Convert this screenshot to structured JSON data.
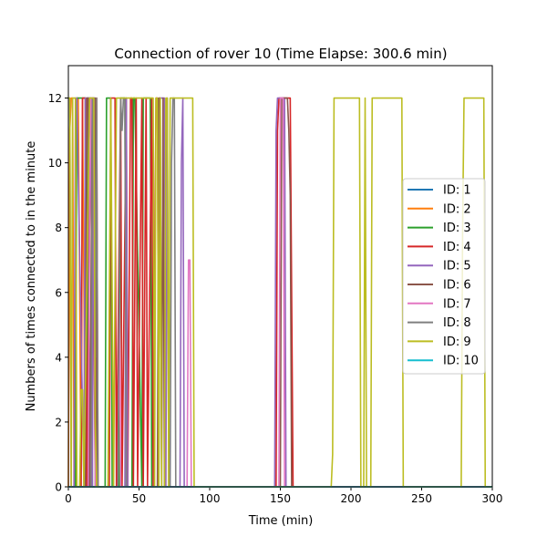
{
  "chart_data": {
    "type": "line",
    "title": "Connection of rover 10 (Time Elapse: 300.6 min)",
    "xlabel": "Time (min)",
    "ylabel": "Numbers of times connected to in the minute",
    "xlim": [
      0,
      300
    ],
    "ylim": [
      0,
      13
    ],
    "xticks": [
      0,
      50,
      100,
      150,
      200,
      250,
      300
    ],
    "yticks": [
      0,
      2,
      4,
      6,
      8,
      10,
      12
    ],
    "legend_position": "center-right",
    "series": [
      {
        "name": "ID: 1",
        "color": "#1f77b4",
        "x": [
          0,
          300
        ],
        "y": [
          0,
          0
        ]
      },
      {
        "name": "ID: 2",
        "color": "#ff7f0e",
        "x": [
          0,
          1,
          2,
          3,
          4,
          6,
          7,
          9,
          10,
          12,
          300
        ],
        "y": [
          0,
          11,
          12,
          12,
          0,
          12,
          12,
          0,
          12,
          0,
          0
        ]
      },
      {
        "name": "ID: 3",
        "color": "#2ca02c",
        "x": [
          0,
          5,
          6,
          7,
          12,
          13,
          14,
          16,
          17,
          26,
          27,
          30,
          31,
          36,
          37,
          40,
          41,
          45,
          46,
          47,
          52,
          53,
          55,
          56,
          58,
          59,
          300
        ],
        "y": [
          0,
          0,
          12,
          12,
          12,
          0,
          12,
          12,
          0,
          0,
          12,
          12,
          0,
          0,
          12,
          12,
          0,
          0,
          12,
          12,
          0,
          12,
          12,
          12,
          12,
          0,
          0
        ]
      },
      {
        "name": "ID: 4",
        "color": "#d62728",
        "x": [
          0,
          9,
          10,
          12,
          13,
          16,
          17,
          19,
          20,
          21,
          29,
          30,
          33,
          34,
          37,
          38,
          41,
          42,
          44,
          45,
          46,
          48,
          49,
          52,
          53,
          55,
          56,
          59,
          60,
          62,
          63,
          64,
          147,
          148,
          149,
          152,
          153,
          154,
          155,
          156,
          157,
          158,
          159,
          300
        ],
        "y": [
          0,
          0,
          12,
          12,
          0,
          12,
          12,
          0,
          12,
          0,
          0,
          12,
          12,
          0,
          12,
          0,
          12,
          0,
          12,
          12,
          0,
          12,
          0,
          12,
          0,
          12,
          0,
          12,
          0,
          12,
          12,
          0,
          0,
          11,
          12,
          12,
          12,
          12,
          12,
          12,
          12,
          6,
          0,
          0
        ]
      },
      {
        "name": "ID: 5",
        "color": "#9467bd",
        "x": [
          0,
          1,
          2,
          4,
          5,
          6,
          11,
          12,
          13,
          16,
          17,
          18,
          19,
          40,
          41,
          42,
          64,
          65,
          66,
          68,
          69,
          70,
          71,
          79,
          80,
          81,
          82,
          145,
          146,
          147,
          148,
          153,
          154,
          155,
          300
        ],
        "y": [
          12,
          12,
          0,
          0,
          12,
          12,
          0,
          12,
          12,
          12,
          0,
          12,
          0,
          0,
          12,
          0,
          0,
          12,
          12,
          12,
          0,
          12,
          0,
          0,
          10,
          12,
          0,
          0,
          0,
          11,
          12,
          12,
          0,
          0,
          0
        ]
      },
      {
        "name": "ID: 6",
        "color": "#8c564b",
        "x": [
          0,
          12,
          13,
          14,
          15,
          17,
          18,
          19,
          20,
          63,
          64,
          65,
          66,
          67,
          68,
          150,
          151,
          152,
          153,
          154,
          155,
          156,
          157,
          158,
          300
        ],
        "y": [
          0,
          0,
          12,
          12,
          0,
          12,
          12,
          12,
          0,
          0,
          12,
          12,
          0,
          12,
          0,
          0,
          12,
          12,
          12,
          12,
          12,
          11,
          9,
          0,
          0
        ]
      },
      {
        "name": "ID: 7",
        "color": "#e377c2",
        "x": [
          0,
          14,
          15,
          16,
          17,
          18,
          19,
          20,
          35,
          36,
          37,
          83,
          84,
          85,
          86,
          87,
          149,
          150,
          151,
          152,
          153,
          300
        ],
        "y": [
          0,
          0,
          8,
          12,
          12,
          12,
          0,
          0,
          0,
          6,
          0,
          0,
          0,
          7,
          7,
          0,
          0,
          12,
          12,
          12,
          0,
          0
        ]
      },
      {
        "name": "ID: 8",
        "color": "#7f7f7f",
        "x": [
          0,
          16,
          17,
          18,
          19,
          20,
          21,
          35,
          36,
          37,
          38,
          39,
          40,
          41,
          72,
          73,
          74,
          75,
          76,
          300
        ],
        "y": [
          0,
          0,
          12,
          12,
          4,
          12,
          0,
          0,
          6,
          12,
          11,
          12,
          12,
          0,
          0,
          10,
          12,
          12,
          0,
          0
        ]
      },
      {
        "name": "ID: 9",
        "color": "#bcbd22",
        "x": [
          0,
          1,
          2,
          3,
          4,
          5,
          6,
          7,
          8,
          9,
          10,
          11,
          15,
          18,
          19,
          20,
          26,
          28,
          30,
          32,
          34,
          60,
          61,
          62,
          63,
          64,
          65,
          66,
          67,
          68,
          69,
          70,
          71,
          72,
          73,
          80,
          81,
          82,
          86,
          87,
          88,
          89,
          186,
          187,
          188,
          189,
          205,
          206,
          207,
          208,
          209,
          210,
          211,
          212,
          213,
          214,
          215,
          216,
          235,
          236,
          237,
          238,
          277,
          278,
          279,
          280,
          291,
          292,
          293,
          294,
          295,
          296,
          300
        ],
        "y": [
          12,
          12,
          0,
          12,
          12,
          12,
          0,
          0,
          0,
          3,
          3,
          0,
          12,
          12,
          2,
          0,
          0,
          0,
          12,
          0,
          12,
          12,
          0,
          12,
          12,
          0,
          12,
          0,
          0,
          0,
          12,
          12,
          0,
          12,
          12,
          12,
          12,
          12,
          12,
          12,
          12,
          0,
          0,
          1,
          12,
          12,
          12,
          12,
          0,
          0,
          0,
          12,
          0,
          0,
          0,
          0,
          12,
          12,
          12,
          12,
          0,
          0,
          0,
          0,
          8,
          12,
          12,
          12,
          12,
          12,
          0,
          0,
          0
        ]
      },
      {
        "name": "ID: 10",
        "color": "#17becf",
        "x": [
          0,
          300
        ],
        "y": [
          0,
          0
        ]
      }
    ]
  }
}
